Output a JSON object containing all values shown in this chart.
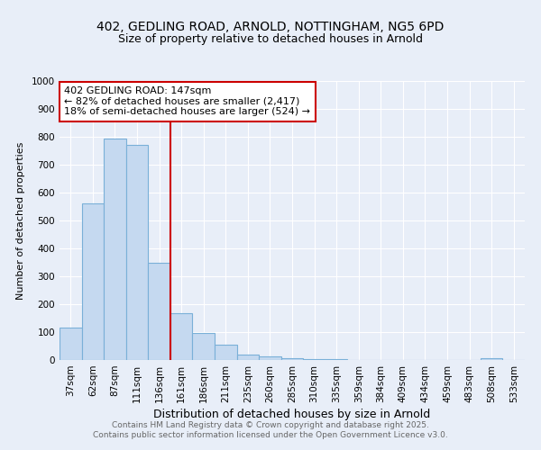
{
  "title_line1": "402, GEDLING ROAD, ARNOLD, NOTTINGHAM, NG5 6PD",
  "title_line2": "Size of property relative to detached houses in Arnold",
  "xlabel": "Distribution of detached houses by size in Arnold",
  "ylabel": "Number of detached properties",
  "categories": [
    "37sqm",
    "62sqm",
    "87sqm",
    "111sqm",
    "136sqm",
    "161sqm",
    "186sqm",
    "211sqm",
    "235sqm",
    "260sqm",
    "285sqm",
    "310sqm",
    "335sqm",
    "359sqm",
    "384sqm",
    "409sqm",
    "434sqm",
    "459sqm",
    "483sqm",
    "508sqm",
    "533sqm"
  ],
  "values": [
    115,
    560,
    795,
    770,
    350,
    168,
    98,
    54,
    18,
    14,
    8,
    4,
    3,
    1,
    1,
    1,
    1,
    1,
    1,
    5,
    1
  ],
  "bar_color": "#c5d9f0",
  "bar_edge_color": "#7ab0d8",
  "vline_x": 4.5,
  "vline_color": "#cc0000",
  "ylim": [
    0,
    1000
  ],
  "yticks": [
    0,
    100,
    200,
    300,
    400,
    500,
    600,
    700,
    800,
    900,
    1000
  ],
  "annotation_text": "402 GEDLING ROAD: 147sqm\n← 82% of detached houses are smaller (2,417)\n18% of semi-detached houses are larger (524) →",
  "annotation_box_color": "#ffffff",
  "annotation_box_edge": "#cc0000",
  "footer_line1": "Contains HM Land Registry data © Crown copyright and database right 2025.",
  "footer_line2": "Contains public sector information licensed under the Open Government Licence v3.0.",
  "bg_color": "#e8eef8",
  "grid_color": "#ffffff",
  "title1_fontsize": 10,
  "title2_fontsize": 9,
  "xlabel_fontsize": 9,
  "ylabel_fontsize": 8,
  "tick_fontsize": 7.5,
  "annot_fontsize": 8,
  "footer_fontsize": 6.5
}
